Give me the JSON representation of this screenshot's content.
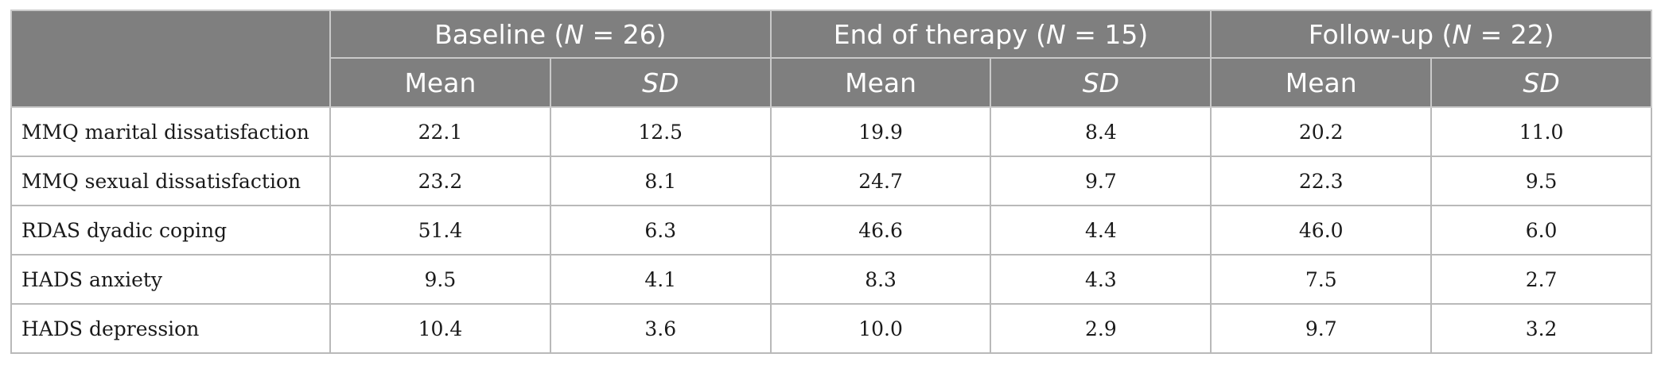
{
  "table": {
    "groups": [
      {
        "label": "Baseline (",
        "n_symbol": "N",
        "n_rest": " = 26)"
      },
      {
        "label": "End of therapy (",
        "n_symbol": "N",
        "n_rest": " = 15)"
      },
      {
        "label": "Follow-up (",
        "n_symbol": "N",
        "n_rest": " = 22)"
      }
    ],
    "subheaders": [
      "Mean",
      "SD",
      "Mean",
      "SD",
      "Mean",
      "SD"
    ],
    "rows": [
      {
        "label": "MMQ marital dissatisfaction",
        "values": [
          "22.1",
          "12.5",
          "19.9",
          "8.4",
          "20.2",
          "11.0"
        ]
      },
      {
        "label": "MMQ sexual dissatisfaction",
        "values": [
          "23.2",
          "8.1",
          "24.7",
          "9.7",
          "22.3",
          "9.5"
        ]
      },
      {
        "label": "RDAS dyadic coping",
        "values": [
          "51.4",
          "6.3",
          "46.6",
          "4.4",
          "46.0",
          "6.0"
        ]
      },
      {
        "label": "HADS anxiety",
        "values": [
          "9.5",
          "4.1",
          "8.3",
          "4.3",
          "7.5",
          "2.7"
        ]
      },
      {
        "label": "HADS depression",
        "values": [
          "10.4",
          "3.6",
          "10.0",
          "2.9",
          "9.7",
          "3.2"
        ]
      }
    ]
  }
}
